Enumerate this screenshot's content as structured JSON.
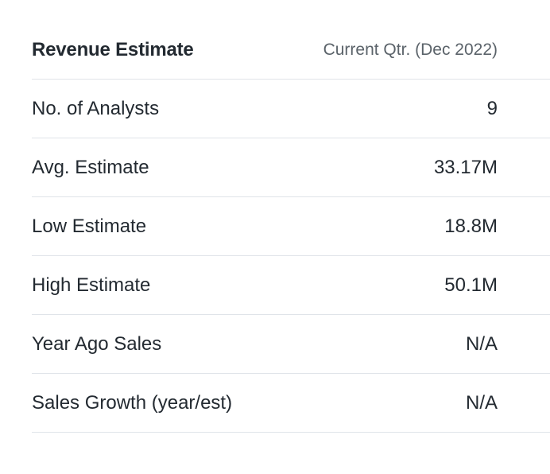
{
  "table": {
    "title": "Revenue Estimate",
    "column_header": "Current Qtr. (Dec 2022)",
    "rows": [
      {
        "label": "No. of Analysts",
        "value": "9"
      },
      {
        "label": "Avg. Estimate",
        "value": "33.17M"
      },
      {
        "label": "Low Estimate",
        "value": "18.8M"
      },
      {
        "label": "High Estimate",
        "value": "50.1M"
      },
      {
        "label": "Year Ago Sales",
        "value": "N/A"
      },
      {
        "label": "Sales Growth (year/est)",
        "value": "N/A"
      }
    ]
  }
}
